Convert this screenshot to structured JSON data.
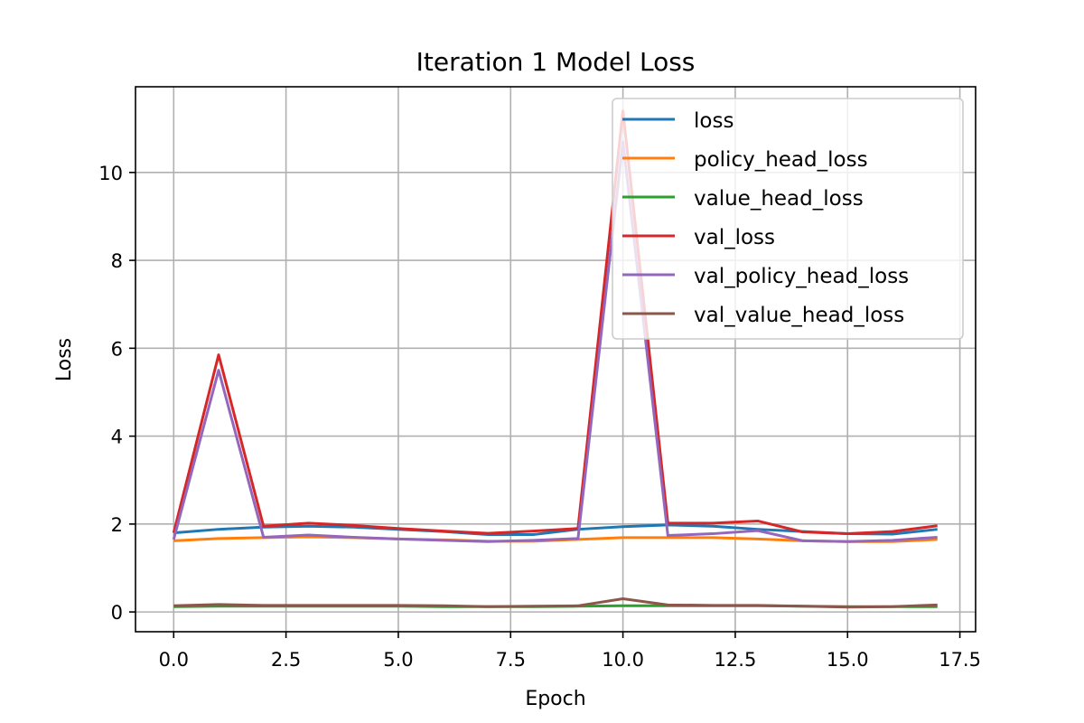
{
  "chart_data": {
    "type": "line",
    "title": "Iteration 1 Model Loss",
    "xlabel": "Epoch",
    "ylabel": "Loss",
    "xlim": [
      -0.85,
      17.85
    ],
    "ylim": [
      -0.45,
      11.95
    ],
    "xticks": [
      0.0,
      2.5,
      5.0,
      7.5,
      10.0,
      12.5,
      15.0,
      17.5
    ],
    "xtick_labels": [
      "0.0",
      "2.5",
      "5.0",
      "7.5",
      "10.0",
      "12.5",
      "15.0",
      "17.5"
    ],
    "yticks": [
      0,
      2,
      4,
      6,
      8,
      10
    ],
    "ytick_labels": [
      "0",
      "2",
      "4",
      "6",
      "8",
      "10"
    ],
    "grid": true,
    "legend_position": "top-right",
    "x": [
      0,
      1,
      2,
      3,
      4,
      5,
      6,
      7,
      8,
      9,
      10,
      11,
      12,
      13,
      14,
      15,
      16,
      17
    ],
    "series": [
      {
        "name": "loss",
        "color": "#1f77b4",
        "values": [
          1.8,
          1.88,
          1.93,
          1.95,
          1.93,
          1.88,
          1.83,
          1.76,
          1.76,
          1.88,
          1.94,
          1.98,
          1.95,
          1.88,
          1.83,
          1.78,
          1.77,
          1.88
        ]
      },
      {
        "name": "policy_head_loss",
        "color": "#ff7f0e",
        "values": [
          1.62,
          1.67,
          1.69,
          1.71,
          1.69,
          1.66,
          1.64,
          1.61,
          1.61,
          1.65,
          1.69,
          1.69,
          1.69,
          1.66,
          1.62,
          1.6,
          1.6,
          1.65
        ]
      },
      {
        "name": "value_head_loss",
        "color": "#2ca02c",
        "values": [
          0.12,
          0.13,
          0.13,
          0.13,
          0.13,
          0.13,
          0.12,
          0.12,
          0.12,
          0.13,
          0.14,
          0.14,
          0.14,
          0.14,
          0.13,
          0.12,
          0.12,
          0.12
        ]
      },
      {
        "name": "val_loss",
        "color": "#d62728",
        "values": [
          1.8,
          5.85,
          1.95,
          2.02,
          1.97,
          1.9,
          1.84,
          1.79,
          1.84,
          1.9,
          11.4,
          2.02,
          2.02,
          2.07,
          1.82,
          1.78,
          1.83,
          1.96
        ]
      },
      {
        "name": "val_policy_head_loss",
        "color": "#9467bd",
        "values": [
          1.65,
          5.5,
          1.7,
          1.75,
          1.7,
          1.66,
          1.63,
          1.6,
          1.63,
          1.67,
          10.7,
          1.74,
          1.78,
          1.85,
          1.62,
          1.6,
          1.63,
          1.7
        ]
      },
      {
        "name": "val_value_head_loss",
        "color": "#8c564b",
        "values": [
          0.14,
          0.17,
          0.15,
          0.15,
          0.15,
          0.15,
          0.14,
          0.12,
          0.13,
          0.14,
          0.3,
          0.16,
          0.15,
          0.15,
          0.13,
          0.11,
          0.12,
          0.16
        ]
      }
    ]
  }
}
